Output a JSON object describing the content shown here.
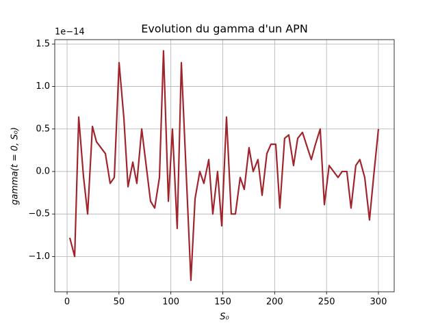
{
  "chart_data": {
    "type": "line",
    "title": "Evolution du gamma d'un APN",
    "x_label": "S₀",
    "y_label": "gamma(t = 0, S₀)",
    "y_offset_label": "1e−14",
    "x": [
      2.6,
      7.3,
      11.2,
      15.8,
      19.8,
      24.4,
      28.3,
      36.9,
      41.5,
      45.5,
      50.1,
      54.7,
      58.7,
      63.3,
      67.2,
      71.9,
      80.4,
      84.4,
      89.0,
      92.9,
      97.6,
      101.5,
      106.1,
      110.1,
      119.3,
      123.3,
      127.9,
      131.8,
      136.5,
      140.4,
      145.0,
      149.0,
      153.6,
      158.2,
      162.2,
      166.8,
      170.7,
      175.3,
      179.3,
      183.9,
      187.9,
      192.5,
      196.4,
      201.1,
      205.0,
      209.6,
      213.6,
      218.2,
      222.2,
      226.8,
      235.3,
      239.3,
      243.9,
      247.9,
      252.5,
      261.1,
      265.0,
      269.6,
      273.6,
      278.2,
      282.1,
      286.8,
      291.4,
      295.3,
      300.0
    ],
    "series": [
      {
        "name": "gamma",
        "color": "#a0242b",
        "values": [
          -0.78,
          -1.0,
          0.64,
          -0.06,
          -0.5,
          0.53,
          0.35,
          0.21,
          -0.14,
          -0.07,
          1.28,
          0.63,
          -0.18,
          0.11,
          -0.14,
          0.5,
          -0.35,
          -0.43,
          -0.07,
          1.42,
          -0.35,
          0.5,
          -0.67,
          1.28,
          -1.28,
          -0.32,
          0.0,
          -0.14,
          0.14,
          -0.5,
          0.0,
          -0.64,
          0.64,
          -0.5,
          -0.5,
          -0.07,
          -0.21,
          0.28,
          0.0,
          0.14,
          -0.28,
          0.21,
          0.32,
          0.32,
          -0.43,
          0.39,
          0.43,
          0.07,
          0.39,
          0.46,
          0.14,
          0.32,
          0.5,
          -0.39,
          0.07,
          -0.07,
          0.0,
          0.0,
          -0.43,
          0.07,
          0.14,
          -0.07,
          -0.57,
          -0.07,
          0.5
        ]
      }
    ],
    "xlim": [
      -11.9,
      315.2
    ],
    "ylim": [
      -1.415,
      1.551
    ],
    "xticks": [
      0,
      50,
      100,
      150,
      200,
      250,
      300
    ],
    "yticks": [
      {
        "value": 1.5,
        "label": "1.5"
      },
      {
        "value": 1.0,
        "label": "1.0"
      },
      {
        "value": 0.5,
        "label": "0.5"
      },
      {
        "value": 0.0,
        "label": "0.0"
      },
      {
        "value": -0.5,
        "label": "−0.5"
      },
      {
        "value": -1.0,
        "label": "−1.0"
      }
    ],
    "grid": true
  }
}
